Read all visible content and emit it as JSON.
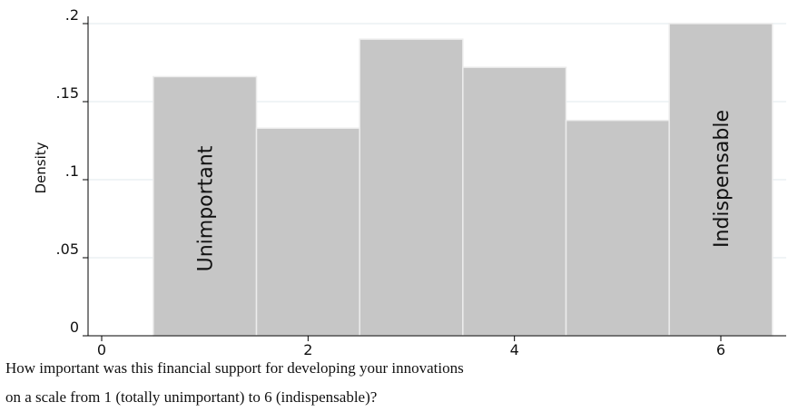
{
  "chart_data": {
    "type": "bar",
    "x": [
      1,
      2,
      3,
      4,
      5,
      6
    ],
    "values": [
      0.166,
      0.133,
      0.19,
      0.172,
      0.138,
      0.2
    ],
    "bin_width": 1,
    "xlim": [
      -0.5,
      6.65
    ],
    "ylim": [
      0,
      0.205
    ],
    "xticks": [
      "0",
      "2",
      "4",
      "6"
    ],
    "yticks": [
      "0",
      ".05",
      ".1",
      ".15",
      ".2"
    ],
    "ylabel": "Density",
    "grid": "horizontal",
    "bar_color": "#c6c6c6",
    "annotations": [
      {
        "x": 1,
        "text": "Unimportant"
      },
      {
        "x": 6,
        "text": "Indispensable"
      }
    ]
  },
  "caption": {
    "line1": "How important was this financial support for developing your innovations",
    "line2": "on a scale from 1 (totally unimportant) to 6 (indispensable)?"
  }
}
